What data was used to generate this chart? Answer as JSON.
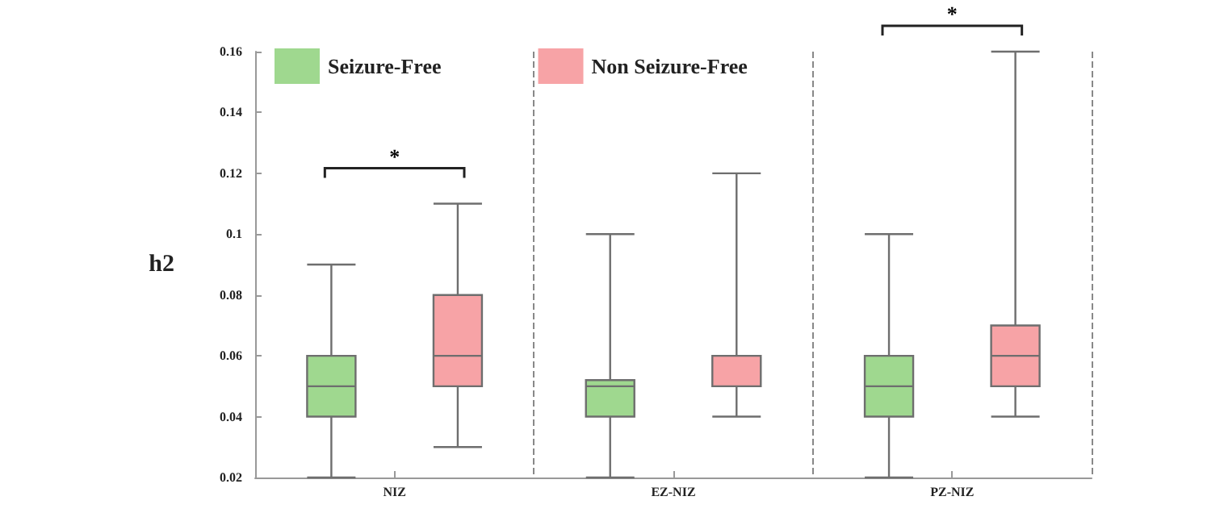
{
  "chart_data": {
    "type": "box",
    "ylabel": "h2",
    "categories": [
      "NIZ",
      "EZ-NIZ",
      "PZ-NIZ"
    ],
    "ylim": [
      0.02,
      0.16
    ],
    "yticks": [
      0.02,
      0.04,
      0.06,
      0.08,
      0.1,
      0.12,
      0.14,
      0.16
    ],
    "grid": "x",
    "legend": "top left",
    "series": [
      {
        "name": "Seizure-Free",
        "color": "#9fd88f",
        "boxes": [
          {
            "low": 0.02,
            "q1": 0.04,
            "median": 0.05,
            "q3": 0.06,
            "high": 0.09
          },
          {
            "low": 0.02,
            "q1": 0.04,
            "median": 0.05,
            "q3": 0.052,
            "high": 0.1
          },
          {
            "low": 0.02,
            "q1": 0.04,
            "median": 0.05,
            "q3": 0.06,
            "high": 0.1
          }
        ]
      },
      {
        "name": "Non Seizure-Free",
        "color": "#f7a3a6",
        "boxes": [
          {
            "low": 0.03,
            "q1": 0.05,
            "median": 0.06,
            "q3": 0.08,
            "high": 0.11
          },
          {
            "low": 0.04,
            "q1": 0.05,
            "median": 0.05,
            "q3": 0.06,
            "high": 0.12
          },
          {
            "low": 0.04,
            "q1": 0.05,
            "median": 0.06,
            "q3": 0.07,
            "high": 0.16
          }
        ]
      }
    ],
    "annotations": [
      "*",
      "*"
    ]
  }
}
